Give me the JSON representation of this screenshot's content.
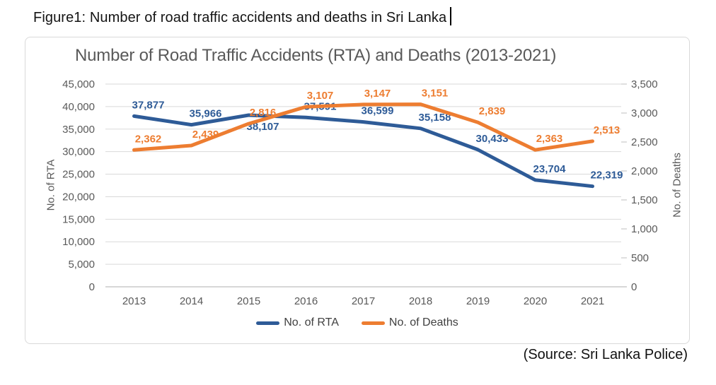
{
  "page": {
    "caption": "Figure1: Number of road traffic accidents and deaths in Sri Lanka",
    "source": "(Source: Sri Lanka Police)"
  },
  "chart_data": {
    "type": "line",
    "title": "Number of Road Traffic Accidents (RTA) and Deaths (2013-2021)",
    "categories": [
      "2013",
      "2014",
      "2015",
      "2016",
      "2017",
      "2018",
      "2019",
      "2020",
      "2021"
    ],
    "series": [
      {
        "name": "No. of RTA",
        "axis": "left",
        "color": "#2E5B97",
        "values": [
          37877,
          35966,
          38107,
          37591,
          36599,
          35158,
          30433,
          23704,
          22319
        ],
        "labels": [
          "37,877",
          "35,966",
          "38,107",
          "37,591",
          "36,599",
          "35,158",
          "30,433",
          "23,704",
          "22,319"
        ],
        "label_below_indices": [
          2
        ]
      },
      {
        "name": "No. of Deaths",
        "axis": "right",
        "color": "#ED7D31",
        "values": [
          2362,
          2439,
          2816,
          3107,
          3147,
          3151,
          2839,
          2363,
          2513
        ],
        "labels": [
          "2,362",
          "2,439",
          "2,816",
          "3,107",
          "3,147",
          "3,151",
          "2,839",
          "2,363",
          "2,513"
        ],
        "label_below_indices": []
      }
    ],
    "left_axis": {
      "title": "No. of RTA",
      "min": 0,
      "max": 45000,
      "step": 5000,
      "tick_labels": [
        "0",
        "5,000",
        "10,000",
        "15,000",
        "20,000",
        "25,000",
        "30,000",
        "35,000",
        "40,000",
        "45,000"
      ]
    },
    "right_axis": {
      "title": "No. of Deaths",
      "min": 0,
      "max": 3500,
      "step": 500,
      "tick_labels": [
        "0",
        "500",
        "1,000",
        "1,500",
        "2,000",
        "2,500",
        "3,000",
        "3,500"
      ]
    },
    "legend": {
      "position": "bottom",
      "entries": [
        "No. of RTA",
        "No. of Deaths"
      ]
    },
    "grid": true,
    "colors": {
      "gridline": "#D9D9D9",
      "axis_line": "#BFBFBF",
      "axis_text": "#595959",
      "title_text": "#595959",
      "legend_text": "#404040"
    }
  }
}
